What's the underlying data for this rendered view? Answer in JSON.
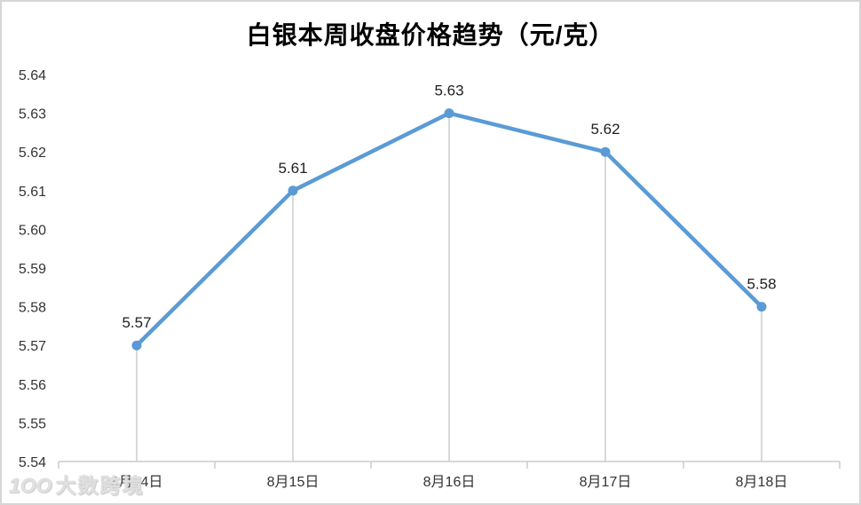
{
  "chart_data": {
    "type": "line",
    "title": "白银本周收盘价格趋势（元/克）",
    "categories": [
      "8月14日",
      "8月15日",
      "8月16日",
      "8月17日",
      "8月18日"
    ],
    "values": [
      5.57,
      5.61,
      5.63,
      5.62,
      5.58
    ],
    "data_labels": [
      "5.57",
      "5.61",
      "5.63",
      "5.62",
      "5.58"
    ],
    "y_tick_labels": [
      "5.54",
      "5.55",
      "5.56",
      "5.57",
      "5.58",
      "5.59",
      "5.60",
      "5.61",
      "5.62",
      "5.63",
      "5.64"
    ],
    "ylim": [
      5.54,
      5.64
    ],
    "y_step": 0.01,
    "xlabel": "",
    "ylabel": "",
    "grid": false,
    "legend": false,
    "drop_lines": true,
    "colors": {
      "line": "#5B9BD5",
      "marker": "#5B9BD5",
      "drop_line": "#d9d9d9",
      "axis": "#cccccc",
      "tick_label": "#333333",
      "data_label": "#1f1f1f",
      "title": "#000000",
      "frame_border": "#d6d6d6"
    }
  },
  "watermark": {
    "logo_text": "1OO",
    "text": "大数跨境"
  }
}
